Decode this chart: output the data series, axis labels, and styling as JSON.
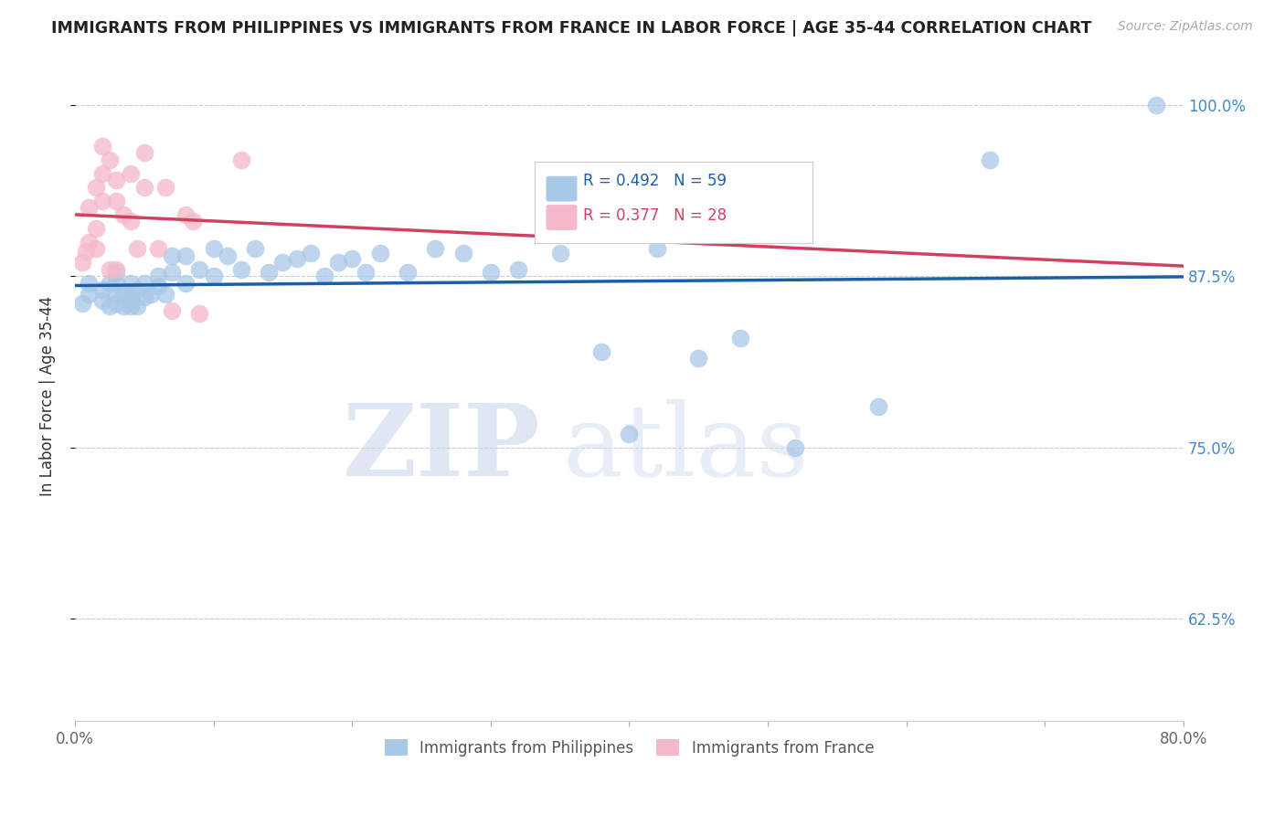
{
  "title": "IMMIGRANTS FROM PHILIPPINES VS IMMIGRANTS FROM FRANCE IN LABOR FORCE | AGE 35-44 CORRELATION CHART",
  "source": "Source: ZipAtlas.com",
  "ylabel": "In Labor Force | Age 35-44",
  "xlim": [
    0.0,
    0.8
  ],
  "ylim": [
    0.55,
    1.025
  ],
  "xticks": [
    0.0,
    0.1,
    0.2,
    0.3,
    0.4,
    0.5,
    0.6,
    0.7,
    0.8
  ],
  "xticklabels": [
    "0.0%",
    "",
    "",
    "",
    "",
    "",
    "",
    "",
    "80.0%"
  ],
  "ytick_positions": [
    0.625,
    0.75,
    0.875,
    1.0
  ],
  "yticklabels": [
    "62.5%",
    "75.0%",
    "87.5%",
    "100.0%"
  ],
  "philippines_R": 0.492,
  "philippines_N": 59,
  "france_R": 0.377,
  "france_N": 28,
  "philippines_color": "#a8c8e8",
  "france_color": "#f5b8c8",
  "philippines_line_color": "#1a5fa8",
  "france_line_color": "#d04060",
  "watermark_zip": "ZIP",
  "watermark_atlas": "atlas",
  "philippines_x": [
    0.005,
    0.01,
    0.01,
    0.02,
    0.02,
    0.025,
    0.025,
    0.03,
    0.03,
    0.03,
    0.03,
    0.035,
    0.035,
    0.04,
    0.04,
    0.04,
    0.04,
    0.045,
    0.045,
    0.05,
    0.05,
    0.055,
    0.06,
    0.06,
    0.065,
    0.07,
    0.07,
    0.08,
    0.08,
    0.09,
    0.1,
    0.1,
    0.11,
    0.12,
    0.13,
    0.14,
    0.15,
    0.16,
    0.17,
    0.18,
    0.19,
    0.2,
    0.21,
    0.22,
    0.24,
    0.26,
    0.28,
    0.3,
    0.32,
    0.35,
    0.38,
    0.4,
    0.42,
    0.45,
    0.48,
    0.52,
    0.58,
    0.66,
    0.78
  ],
  "philippines_y": [
    0.855,
    0.862,
    0.87,
    0.857,
    0.865,
    0.853,
    0.87,
    0.862,
    0.855,
    0.87,
    0.878,
    0.853,
    0.862,
    0.853,
    0.857,
    0.862,
    0.87,
    0.853,
    0.865,
    0.86,
    0.87,
    0.862,
    0.868,
    0.875,
    0.862,
    0.878,
    0.89,
    0.87,
    0.89,
    0.88,
    0.895,
    0.875,
    0.89,
    0.88,
    0.895,
    0.878,
    0.885,
    0.888,
    0.892,
    0.875,
    0.885,
    0.888,
    0.878,
    0.892,
    0.878,
    0.895,
    0.892,
    0.878,
    0.88,
    0.892,
    0.82,
    0.76,
    0.895,
    0.815,
    0.83,
    0.75,
    0.78,
    0.96,
    1.0
  ],
  "france_x": [
    0.005,
    0.008,
    0.01,
    0.01,
    0.015,
    0.015,
    0.015,
    0.02,
    0.02,
    0.02,
    0.025,
    0.025,
    0.03,
    0.03,
    0.03,
    0.035,
    0.04,
    0.04,
    0.045,
    0.05,
    0.05,
    0.06,
    0.065,
    0.07,
    0.08,
    0.085,
    0.09,
    0.12
  ],
  "france_y": [
    0.885,
    0.893,
    0.9,
    0.925,
    0.94,
    0.895,
    0.91,
    0.93,
    0.95,
    0.97,
    0.88,
    0.96,
    0.88,
    0.93,
    0.945,
    0.92,
    0.915,
    0.95,
    0.895,
    0.94,
    0.965,
    0.895,
    0.94,
    0.85,
    0.92,
    0.915,
    0.848,
    0.96
  ]
}
